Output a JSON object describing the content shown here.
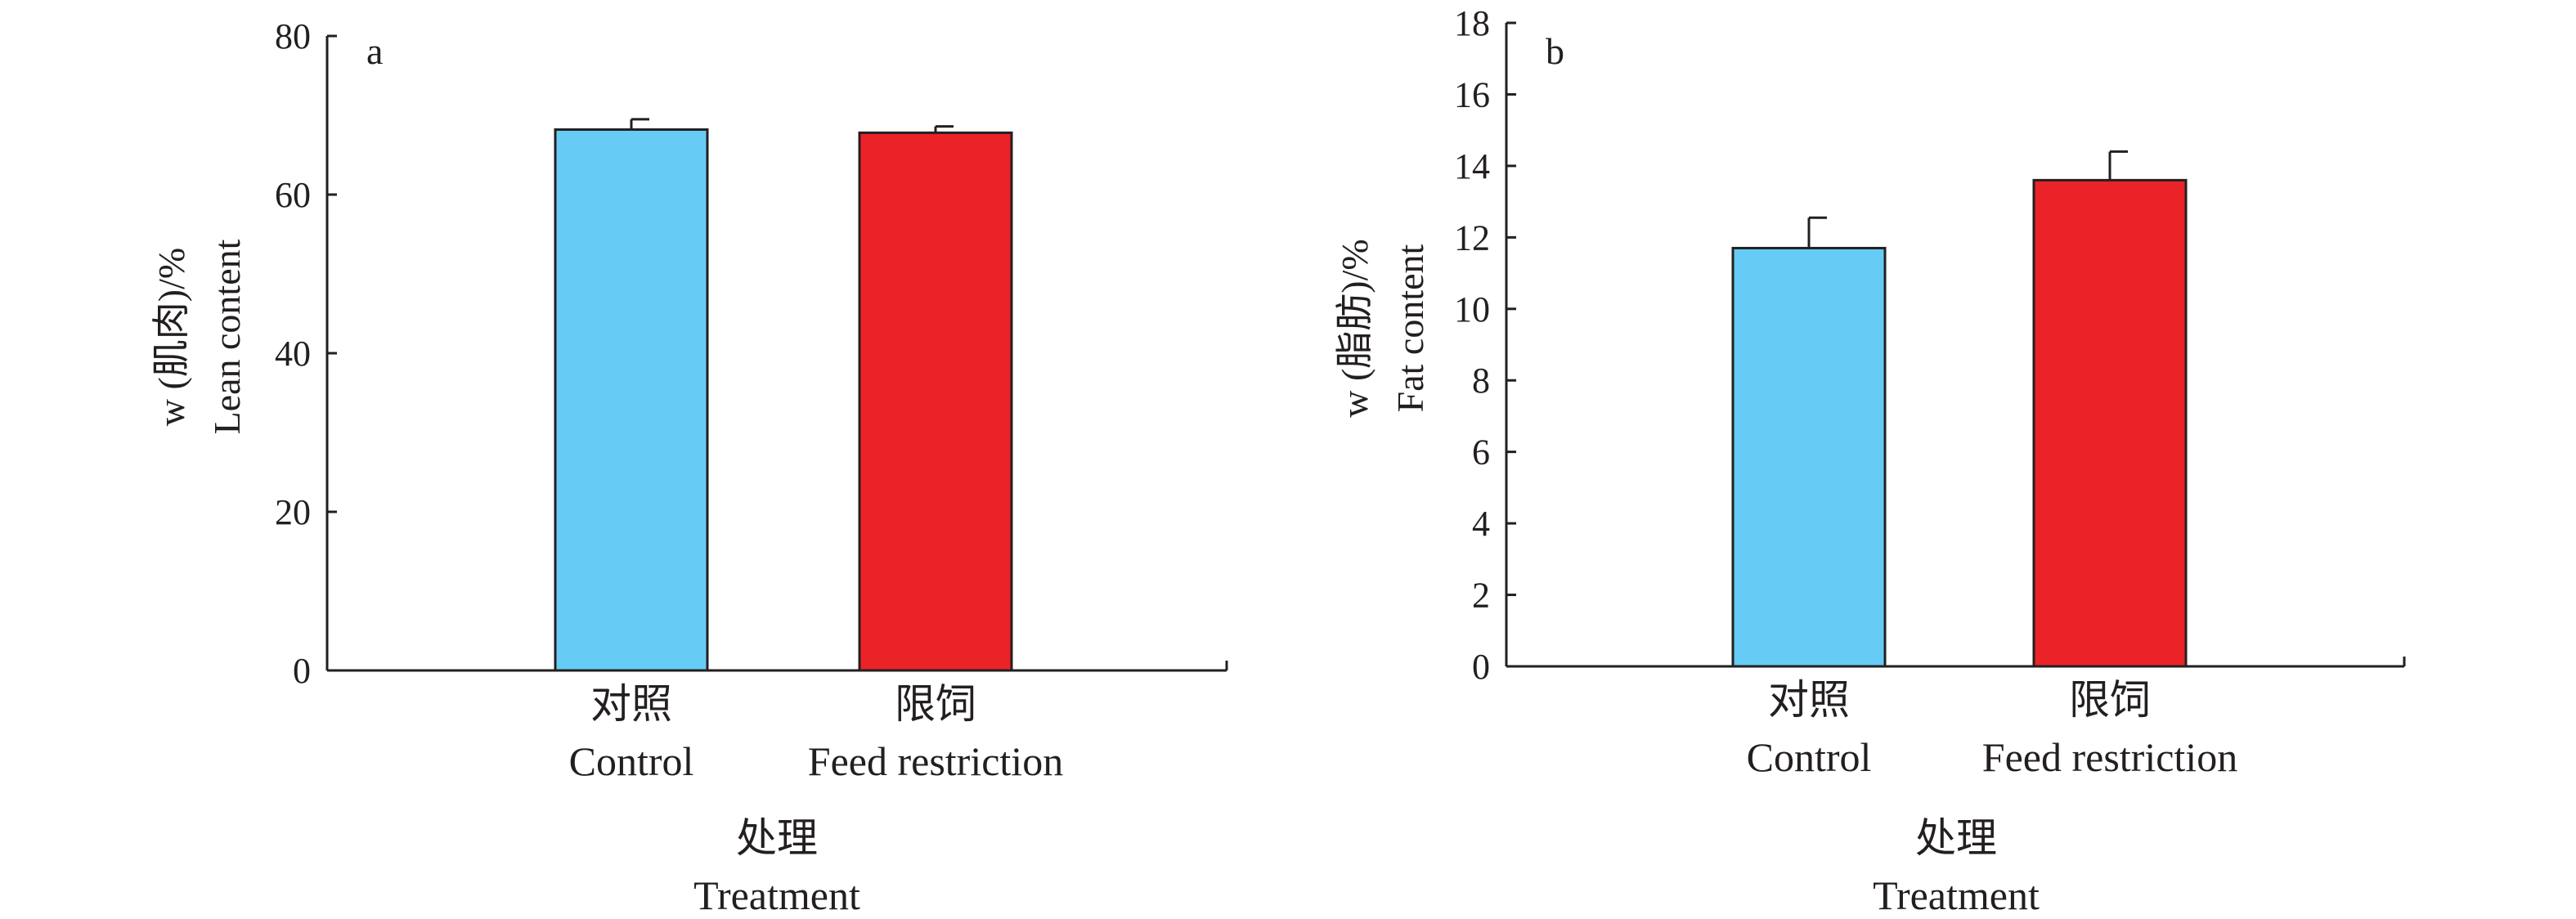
{
  "chart_data": [
    {
      "type": "bar",
      "panel_label": "a",
      "categories": [
        "对照\nControl",
        "限饲\nFeed restriction"
      ],
      "category_lines": [
        [
          "对照",
          "Control"
        ],
        [
          "限饲",
          "Feed restriction"
        ]
      ],
      "values": [
        68.2,
        67.8
      ],
      "errors": [
        1.3,
        0.8
      ],
      "bar_colors": [
        "#66ccf5",
        "#ec2229"
      ],
      "ylim": [
        0,
        80
      ],
      "yticks": [
        0,
        20,
        40,
        60,
        80
      ],
      "ylabel_lines": [
        "w (肌肉)/%",
        "Lean content"
      ],
      "xlabel_lines": [
        "处理",
        "Treatment"
      ]
    },
    {
      "type": "bar",
      "panel_label": "b",
      "categories": [
        "对照\nControl",
        "限饲\nFeed restriction"
      ],
      "category_lines": [
        [
          "对照",
          "Control"
        ],
        [
          "限饲",
          "Feed restriction"
        ]
      ],
      "values": [
        11.7,
        13.6
      ],
      "errors": [
        0.85,
        0.8
      ],
      "bar_colors": [
        "#66ccf5",
        "#ec2229"
      ],
      "ylim": [
        0,
        18
      ],
      "yticks": [
        0,
        2,
        4,
        6,
        8,
        10,
        12,
        14,
        16,
        18
      ],
      "ylabel_lines": [
        "w (脂肪)/%",
        "Fat content"
      ],
      "xlabel_lines": [
        "处理",
        "Treatment"
      ]
    }
  ]
}
